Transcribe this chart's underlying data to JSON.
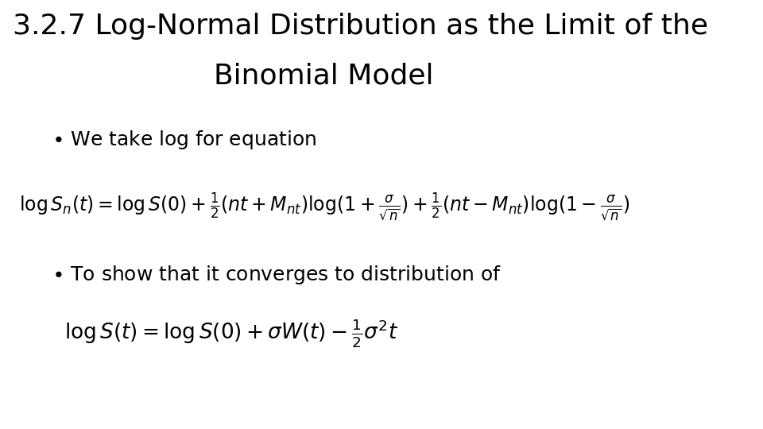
{
  "title_line1": "3.2.7 Log-Normal Distribution as the Limit of the",
  "title_line2": "Binomial Model",
  "bullet1": "We take log for equation",
  "bullet2": "To show that it converges to distribution of",
  "bg_color": "#ffffff",
  "text_color": "#000000",
  "title_fontsize": 26,
  "bullet_fontsize": 18,
  "formula_fontsize": 17,
  "formula2_fontsize": 19
}
